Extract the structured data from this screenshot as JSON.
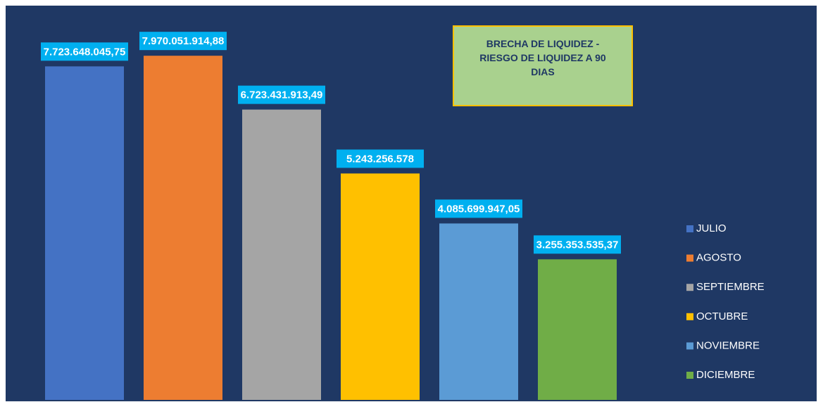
{
  "chart_data": {
    "type": "bar",
    "title": "BRECHA DE LIQUIDEZ - RIESGO DE LIQUIDEZ  A 90 DIAS",
    "series": [
      {
        "name": "JULIO",
        "color": "#4472c4",
        "values": [
          7723648045.75
        ],
        "value_labels": [
          "7.723.648.045,75"
        ]
      },
      {
        "name": "AGOSTO",
        "color": "#ed7d31",
        "values": [
          7970051914.88
        ],
        "value_labels": [
          "7.970.051.914,88"
        ]
      },
      {
        "name": "SEPTIEMBRE",
        "color": "#a5a5a5",
        "values": [
          6723431913.49
        ],
        "value_labels": [
          "6.723.431.913,49"
        ]
      },
      {
        "name": "OCTUBRE",
        "color": "#ffc000",
        "values": [
          5243256578
        ],
        "value_labels": [
          "5.243.256.578"
        ]
      },
      {
        "name": "NOVIEMBRE",
        "color": "#5b9bd5",
        "values": [
          4085699947.05
        ],
        "value_labels": [
          "4.085.699.947,05"
        ]
      },
      {
        "name": "DICIEMBRE",
        "color": "#70ad47",
        "values": [
          3255353535.37
        ],
        "value_labels": [
          "3.255.353.535,37"
        ]
      }
    ],
    "ylim": [
      0,
      9000000000
    ],
    "legend": "right"
  }
}
